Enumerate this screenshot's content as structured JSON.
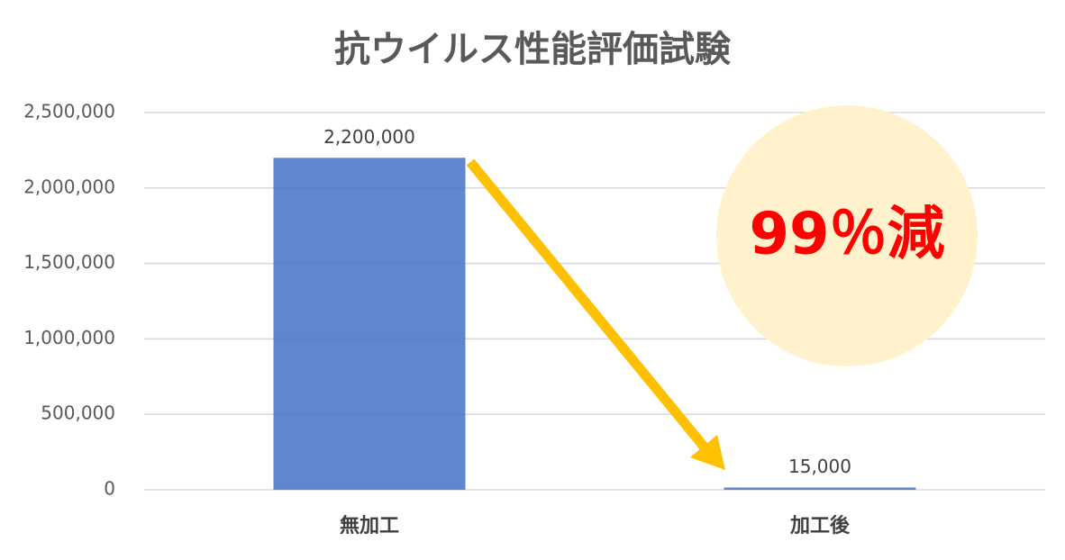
{
  "chart_data": {
    "type": "bar",
    "title": "抗ウイルス性能評価試験",
    "categories": [
      "無加工",
      "加工後"
    ],
    "values": [
      2200000,
      15000
    ],
    "value_labels": [
      "2,200,000",
      "15,000"
    ],
    "color": "#4472c4",
    "ylim": [
      0,
      2500000
    ],
    "yticks": [
      0,
      {
        "value": 500000,
        "label": "500,000"
      },
      {
        "value": 1000000,
        "label": "1,000,000"
      },
      {
        "value": 1500000,
        "label": "1,500,000"
      },
      {
        "value": 2000000,
        "label": "2,000,000"
      },
      {
        "value": 2500000,
        "label": "2,500,000"
      }
    ],
    "grid": true,
    "annotation": "99％減"
  }
}
